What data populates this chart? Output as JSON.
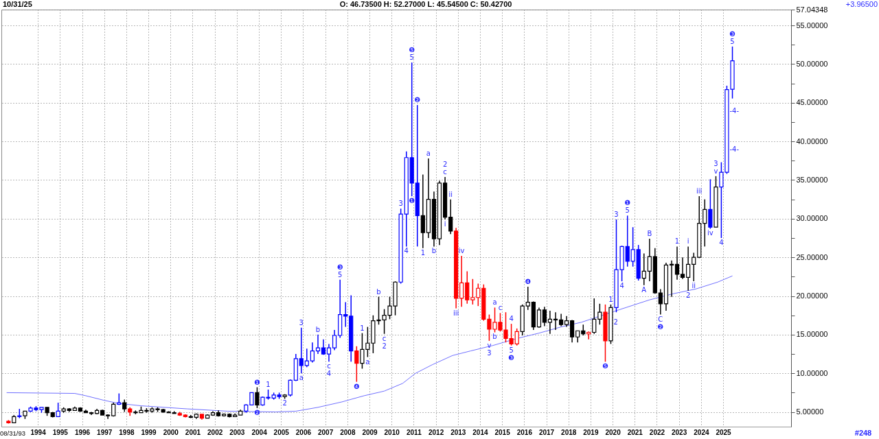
{
  "chart_data": {
    "type": "candlestick",
    "x": [
      "1993-01",
      "1993-04",
      "1993-07",
      "1993-10",
      "1994-01",
      "1994-04",
      "1994-07",
      "1994-10",
      "1995-01",
      "1995-04",
      "1995-07",
      "1995-10",
      "1996-01",
      "1996-04",
      "1996-07",
      "1996-10",
      "1997-01",
      "1997-04",
      "1997-07",
      "1997-10",
      "1998-01",
      "1998-04",
      "1998-07",
      "1998-10",
      "1999-01",
      "1999-04",
      "1999-07",
      "1999-10",
      "2000-01",
      "2000-04",
      "2000-07",
      "2000-10",
      "2001-01",
      "2001-04",
      "2001-07",
      "2001-10",
      "2002-01",
      "2002-04",
      "2002-07",
      "2002-10",
      "2003-01",
      "2003-04",
      "2003-07",
      "2003-10",
      "2004-01",
      "2004-04",
      "2004-07",
      "2004-10",
      "2005-01",
      "2005-04",
      "2005-07",
      "2005-10",
      "2006-01",
      "2006-04",
      "2006-07",
      "2006-10",
      "2007-01",
      "2007-04",
      "2007-07",
      "2007-10",
      "2008-01",
      "2008-04",
      "2008-07",
      "2008-10",
      "2009-01",
      "2009-04",
      "2009-07",
      "2009-10",
      "2010-01",
      "2010-04",
      "2010-07",
      "2010-10",
      "2011-01",
      "2011-04",
      "2011-07",
      "2011-10",
      "2012-01",
      "2012-04",
      "2012-07",
      "2012-10",
      "2013-01",
      "2013-04",
      "2013-07",
      "2013-10",
      "2014-01",
      "2014-04",
      "2014-07",
      "2014-10",
      "2015-01",
      "2015-04",
      "2015-07",
      "2015-10",
      "2016-01",
      "2016-04",
      "2016-07",
      "2016-10",
      "2017-01",
      "2017-04",
      "2017-07",
      "2017-10",
      "2018-01",
      "2018-04",
      "2018-07",
      "2018-10",
      "2019-01",
      "2019-04",
      "2019-07",
      "2019-10",
      "2020-01",
      "2020-04",
      "2020-07",
      "2020-10",
      "2021-01",
      "2021-04",
      "2021-07",
      "2021-10",
      "2022-01",
      "2022-04",
      "2022-07",
      "2022-10",
      "2023-01",
      "2023-04",
      "2023-07",
      "2023-10",
      "2024-01",
      "2024-04",
      "2024-07",
      "2024-10",
      "2025-01",
      "2025-04",
      "2025-07",
      "2025-10"
    ],
    "ohlc": [
      [
        3.8,
        3.95,
        3.5,
        3.6
      ],
      [
        3.6,
        4.6,
        3.6,
        4.4
      ],
      [
        4.4,
        5.4,
        4.2,
        4.5
      ],
      [
        4.5,
        5.1,
        4.1,
        5.1
      ],
      [
        5.1,
        5.7,
        5.0,
        5.5
      ],
      [
        5.5,
        5.75,
        5.1,
        5.3
      ],
      [
        5.3,
        5.6,
        4.9,
        5.6
      ],
      [
        5.6,
        5.6,
        4.5,
        4.9
      ],
      [
        4.9,
        5.0,
        4.3,
        4.4
      ],
      [
        4.4,
        6.2,
        4.4,
        5.1
      ],
      [
        5.1,
        5.6,
        4.9,
        5.4
      ],
      [
        5.4,
        5.5,
        5.0,
        5.2
      ],
      [
        5.2,
        5.7,
        5.2,
        5.5
      ],
      [
        5.5,
        5.6,
        5.0,
        5.1
      ],
      [
        5.1,
        5.3,
        4.9,
        4.9
      ],
      [
        4.9,
        5.0,
        4.6,
        4.8
      ],
      [
        4.8,
        5.4,
        4.7,
        5.2
      ],
      [
        5.2,
        5.3,
        4.6,
        4.6
      ],
      [
        4.6,
        4.7,
        4.1,
        4.5
      ],
      [
        4.5,
        6.2,
        4.4,
        6.0
      ],
      [
        6.0,
        7.4,
        5.9,
        6.2
      ],
      [
        6.2,
        6.6,
        5.0,
        5.4
      ],
      [
        5.4,
        5.6,
        4.5,
        5.0
      ],
      [
        5.0,
        5.2,
        4.7,
        4.9
      ],
      [
        4.9,
        5.7,
        4.9,
        5.2
      ],
      [
        5.2,
        5.5,
        4.9,
        5.1
      ],
      [
        5.1,
        5.6,
        4.9,
        5.4
      ],
      [
        5.4,
        5.6,
        5.0,
        5.3
      ],
      [
        5.3,
        5.4,
        4.9,
        5.0
      ],
      [
        5.0,
        5.1,
        4.9,
        4.9
      ],
      [
        4.9,
        5.1,
        4.8,
        4.8
      ],
      [
        4.8,
        5.0,
        4.5,
        4.6
      ],
      [
        4.6,
        4.7,
        4.3,
        4.4
      ],
      [
        4.4,
        4.6,
        4.2,
        4.3
      ],
      [
        4.3,
        4.8,
        4.1,
        4.7
      ],
      [
        4.7,
        4.7,
        4.0,
        4.2
      ],
      [
        4.2,
        4.7,
        4.2,
        4.6
      ],
      [
        4.6,
        5.1,
        4.5,
        4.9
      ],
      [
        4.9,
        5.2,
        4.4,
        4.5
      ],
      [
        4.5,
        4.8,
        4.4,
        4.7
      ],
      [
        4.7,
        4.8,
        4.3,
        4.4
      ],
      [
        4.4,
        4.8,
        4.4,
        4.6
      ],
      [
        4.6,
        5.3,
        4.6,
        5.1
      ],
      [
        5.1,
        6.0,
        4.9,
        5.9
      ],
      [
        5.9,
        7.5,
        5.9,
        7.5
      ],
      [
        7.5,
        8.2,
        5.5,
        5.9
      ],
      [
        5.9,
        7.0,
        5.8,
        6.9
      ],
      [
        6.9,
        7.9,
        6.6,
        6.8
      ],
      [
        6.8,
        7.5,
        6.6,
        7.2
      ],
      [
        7.2,
        7.5,
        6.7,
        7.0
      ],
      [
        7.0,
        7.3,
        6.7,
        7.2
      ],
      [
        7.2,
        9.2,
        7.0,
        9.1
      ],
      [
        9.1,
        12.5,
        9.0,
        11.9
      ],
      [
        11.9,
        15.9,
        10.0,
        11.0
      ],
      [
        11.0,
        13.2,
        10.8,
        11.6
      ],
      [
        11.6,
        14.0,
        11.4,
        12.9
      ],
      [
        12.9,
        15.0,
        12.5,
        13.3
      ],
      [
        13.3,
        14.4,
        12.4,
        12.5
      ],
      [
        12.5,
        13.8,
        11.5,
        13.3
      ],
      [
        13.3,
        15.6,
        13.0,
        14.9
      ],
      [
        14.9,
        22.1,
        14.6,
        17.6
      ],
      [
        17.6,
        19.2,
        16.0,
        17.4
      ],
      [
        17.4,
        20.1,
        11.5,
        12.9
      ],
      [
        12.9,
        13.5,
        8.9,
        11.3
      ],
      [
        11.3,
        15.2,
        10.6,
        13.1
      ],
      [
        13.1,
        16.0,
        12.1,
        13.9
      ],
      [
        13.9,
        17.5,
        12.6,
        16.8
      ],
      [
        16.8,
        19.9,
        16.3,
        16.9
      ],
      [
        16.9,
        18.3,
        15.1,
        17.5
      ],
      [
        17.5,
        19.9,
        17.0,
        18.7
      ],
      [
        18.7,
        21.9,
        17.5,
        21.8
      ],
      [
        21.8,
        31.3,
        21.6,
        30.6
      ],
      [
        30.6,
        38.7,
        26.4,
        37.9
      ],
      [
        37.9,
        50.2,
        32.9,
        34.6
      ],
      [
        34.6,
        44.7,
        26.4,
        30.4
      ],
      [
        30.4,
        35.7,
        26.2,
        28.2
      ],
      [
        28.2,
        37.8,
        27.5,
        32.5
      ],
      [
        32.5,
        33.5,
        26.4,
        27.4
      ],
      [
        27.4,
        34.9,
        26.6,
        34.6
      ],
      [
        34.6,
        35.4,
        29.9,
        30.2
      ],
      [
        30.2,
        32.5,
        28.0,
        28.4
      ],
      [
        28.4,
        28.8,
        18.4,
        19.7
      ],
      [
        19.7,
        25.2,
        18.6,
        21.7
      ],
      [
        21.7,
        23.2,
        19.0,
        19.5
      ],
      [
        19.5,
        22.2,
        18.9,
        19.8
      ],
      [
        19.8,
        21.6,
        18.7,
        21.0
      ],
      [
        21.0,
        21.5,
        16.8,
        17.0
      ],
      [
        17.0,
        17.6,
        14.2,
        15.7
      ],
      [
        15.7,
        18.5,
        15.3,
        16.6
      ],
      [
        16.6,
        17.8,
        15.4,
        15.6
      ],
      [
        15.6,
        17.9,
        14.0,
        14.5
      ],
      [
        14.5,
        16.4,
        13.6,
        13.8
      ],
      [
        13.8,
        15.8,
        13.6,
        15.4
      ],
      [
        15.4,
        18.9,
        14.9,
        18.7
      ],
      [
        18.7,
        21.2,
        18.2,
        19.2
      ],
      [
        19.2,
        19.3,
        15.6,
        16.0
      ],
      [
        16.0,
        18.5,
        15.9,
        18.2
      ],
      [
        18.2,
        18.6,
        16.1,
        16.6
      ],
      [
        16.6,
        18.1,
        15.1,
        17.0
      ],
      [
        17.0,
        17.9,
        15.6,
        16.9
      ],
      [
        16.9,
        17.7,
        16.1,
        16.3
      ],
      [
        16.3,
        17.4,
        16.0,
        16.8
      ],
      [
        16.8,
        16.9,
        14.0,
        14.7
      ],
      [
        14.7,
        15.5,
        14.0,
        15.5
      ],
      [
        15.5,
        16.3,
        14.9,
        15.1
      ],
      [
        15.1,
        15.4,
        14.4,
        15.3
      ],
      [
        15.3,
        19.7,
        15.1,
        17.0
      ],
      [
        17.0,
        19.0,
        16.3,
        17.9
      ],
      [
        17.9,
        18.9,
        11.5,
        14.2
      ],
      [
        14.2,
        18.9,
        13.8,
        18.5
      ],
      [
        18.5,
        29.9,
        17.9,
        23.4
      ],
      [
        23.4,
        26.5,
        21.9,
        26.4
      ],
      [
        26.4,
        30.4,
        23.8,
        24.5
      ],
      [
        24.5,
        28.9,
        23.8,
        26.0
      ],
      [
        26.0,
        26.6,
        22.0,
        22.3
      ],
      [
        22.3,
        25.5,
        21.4,
        23.2
      ],
      [
        23.2,
        27.4,
        21.9,
        25.1
      ],
      [
        25.1,
        26.2,
        20.3,
        20.4
      ],
      [
        20.4,
        20.9,
        17.6,
        19.0
      ],
      [
        19.0,
        24.3,
        18.1,
        24.0
      ],
      [
        24.0,
        24.6,
        19.9,
        24.1
      ],
      [
        24.1,
        26.4,
        22.1,
        22.8
      ],
      [
        22.8,
        25.0,
        22.2,
        22.4
      ],
      [
        22.4,
        26.4,
        20.7,
        24.1
      ],
      [
        24.1,
        25.6,
        21.9,
        25.0
      ],
      [
        25.0,
        32.9,
        24.9,
        29.4
      ],
      [
        29.4,
        32.5,
        26.4,
        31.2
      ],
      [
        31.2,
        35.1,
        28.7,
        28.9
      ],
      [
        28.9,
        35.5,
        28.9,
        34.1
      ],
      [
        34.1,
        37.3,
        27.5,
        36.0
      ],
      [
        36.0,
        47.2,
        35.8,
        46.7
      ],
      [
        46.735,
        52.27,
        45.545,
        50.427
      ]
    ],
    "colors": [
      "#ff0000",
      "#000000",
      "#0000ff",
      "#000000",
      "#0000ff",
      "#0000ff",
      "#0000ff",
      "#000000",
      "#000000",
      "#0000ff",
      "#000000",
      "#000000",
      "#000000",
      "#000000",
      "#000000",
      "#000000",
      "#000000",
      "#000000",
      "#000000",
      "#000000",
      "#0000ff",
      "#000000",
      "#ff0000",
      "#000000",
      "#000000",
      "#000000",
      "#000000",
      "#000000",
      "#000000",
      "#000000",
      "#000000",
      "#ff0000",
      "#ff0000",
      "#000000",
      "#000000",
      "#ff0000",
      "#000000",
      "#000000",
      "#000000",
      "#000000",
      "#000000",
      "#000000",
      "#000000",
      "#0000ff",
      "#0000ff",
      "#000000",
      "#0000ff",
      "#0000ff",
      "#0000ff",
      "#0000ff",
      "#000000",
      "#0000ff",
      "#0000ff",
      "#0000ff",
      "#0000ff",
      "#0000ff",
      "#0000ff",
      "#0000ff",
      "#0000ff",
      "#0000ff",
      "#0000ff",
      "#0000ff",
      "#0000ff",
      "#ff0000",
      "#000000",
      "#000000",
      "#000000",
      "#000000",
      "#000000",
      "#000000",
      "#000000",
      "#0000ff",
      "#0000ff",
      "#0000ff",
      "#0000ff",
      "#000000",
      "#000000",
      "#000000",
      "#000000",
      "#000000",
      "#000000",
      "#ff0000",
      "#ff0000",
      "#ff0000",
      "#ff0000",
      "#ff0000",
      "#ff0000",
      "#ff0000",
      "#ff0000",
      "#ff0000",
      "#ff0000",
      "#ff0000",
      "#ff0000",
      "#000000",
      "#000000",
      "#000000",
      "#000000",
      "#000000",
      "#000000",
      "#000000",
      "#000000",
      "#000000",
      "#000000",
      "#000000",
      "#000000",
      "#ff0000",
      "#000000",
      "#000000",
      "#ff0000",
      "#000000",
      "#0000ff",
      "#0000ff",
      "#0000ff",
      "#0000ff",
      "#0000ff",
      "#000000",
      "#000000",
      "#000000",
      "#000000",
      "#000000",
      "#000000",
      "#000000",
      "#000000",
      "#000000",
      "#000000",
      "#000000",
      "#000000",
      "#0000ff",
      "#000000",
      "#0000ff",
      "#0000ff",
      "#0000ff"
    ],
    "series": [
      {
        "type": "line",
        "color": "#7070ff",
        "x": [
          "1992-12",
          "1996-01",
          "1996-07",
          "1997-05",
          "1998-01",
          "1999-01",
          "2001-02",
          "2002-12",
          "2005-02",
          "2006-01",
          "2007-01",
          "2008-02",
          "2009-02",
          "2010-01",
          "2010-11",
          "2011-06",
          "2012-03",
          "2013-02",
          "2013-12",
          "2014-12",
          "2016-01",
          "2017-01",
          "2018-01",
          "2018-12",
          "2020-07",
          "2022-01",
          "2023-02",
          "2024-02",
          "2025-02",
          "2025-10"
        ],
        "values": [
          7.5,
          7.4,
          7.1,
          6.5,
          6.1,
          5.8,
          5.4,
          5.1,
          5.0,
          5.1,
          5.6,
          6.3,
          7.1,
          7.7,
          8.7,
          10.0,
          11.1,
          12.3,
          12.9,
          13.6,
          14.5,
          15.2,
          16.0,
          16.6,
          18.1,
          19.5,
          20.3,
          20.9,
          21.8,
          22.6
        ]
      }
    ],
    "xlim": [
      "1992-11",
      "2028-04"
    ],
    "xticks": [
      {
        "value": "1994-05",
        "label": "1994"
      },
      {
        "value": "1995-05",
        "label": "1995"
      },
      {
        "value": "1996-05",
        "label": "1996"
      },
      {
        "value": "1997-05",
        "label": "1997"
      },
      {
        "value": "1998-05",
        "label": "1998"
      },
      {
        "value": "1999-05",
        "label": "1999"
      },
      {
        "value": "2000-05",
        "label": "2000"
      },
      {
        "value": "2001-05",
        "label": "2001"
      },
      {
        "value": "2002-05",
        "label": "2002"
      },
      {
        "value": "2003-05",
        "label": "2003"
      },
      {
        "value": "2004-05",
        "label": "2004"
      },
      {
        "value": "2005-05",
        "label": "2005"
      },
      {
        "value": "2006-05",
        "label": "2006"
      },
      {
        "value": "2007-05",
        "label": "2007"
      },
      {
        "value": "2008-05",
        "label": "2008"
      },
      {
        "value": "2009-05",
        "label": "2009"
      },
      {
        "value": "2010-05",
        "label": "2010"
      },
      {
        "value": "2011-05",
        "label": "2011"
      },
      {
        "value": "2012-05",
        "label": "2012"
      },
      {
        "value": "2013-05",
        "label": "2013"
      },
      {
        "value": "2014-05",
        "label": "2014"
      },
      {
        "value": "2015-05",
        "label": "2015"
      },
      {
        "value": "2016-05",
        "label": "2016"
      },
      {
        "value": "2017-05",
        "label": "2017"
      },
      {
        "value": "2018-05",
        "label": "2018"
      },
      {
        "value": "2019-05",
        "label": "2019"
      },
      {
        "value": "2020-05",
        "label": "2020"
      },
      {
        "value": "2021-05",
        "label": "2021"
      },
      {
        "value": "2022-05",
        "label": "2022"
      },
      {
        "value": "2023-05",
        "label": "2023"
      },
      {
        "value": "2024-05",
        "label": "2024"
      },
      {
        "value": "2025-05",
        "label": "2025"
      }
    ],
    "ylim": [
      3.1,
      57.04348
    ],
    "yticks": [
      {
        "value": 5,
        "label": "5.00000"
      },
      {
        "value": 7.5,
        "label": null
      },
      {
        "value": 10,
        "label": "10.00000"
      },
      {
        "value": 12.5,
        "label": null
      },
      {
        "value": 15,
        "label": "15.00000"
      },
      {
        "value": 17.5,
        "label": null
      },
      {
        "value": 20,
        "label": "20.00000"
      },
      {
        "value": 22.5,
        "label": null
      },
      {
        "value": 25,
        "label": "25.00000"
      },
      {
        "value": 27.5,
        "label": null
      },
      {
        "value": 30,
        "label": "30.00000"
      },
      {
        "value": 32.5,
        "label": null
      },
      {
        "value": 35,
        "label": "35.00000"
      },
      {
        "value": 37.5,
        "label": null
      },
      {
        "value": 40,
        "label": "40.00000"
      },
      {
        "value": 42.5,
        "label": null
      },
      {
        "value": 45,
        "label": "45.00000"
      },
      {
        "value": 47.5,
        "label": null
      },
      {
        "value": 50,
        "label": "50.00000"
      },
      {
        "value": 52.5,
        "label": null
      },
      {
        "value": 55,
        "label": "55.00000"
      },
      {
        "value": 57.04348,
        "label": "57.04348"
      }
    ],
    "grid": true,
    "annotations": [
      "10/31/25",
      "O: 46.73500   H: 52.27000   L: 45.54500   C: 50.42700",
      "+3.96500",
      "08/31/93",
      "#248",
      {
        "text": "❶",
        "x": "2004-04",
        "y": 8.2
      },
      {
        "text": "❷",
        "x": "2004-04",
        "y": 5.5
      },
      {
        "text": "1",
        "x": "2004-10",
        "y": 7.9
      },
      {
        "text": "2",
        "x": "2005-07",
        "y": 6.7
      },
      {
        "text": "3",
        "x": "2006-04",
        "y": 15.9
      },
      {
        "text": "a",
        "x": "2006-04",
        "y": 10.0
      },
      {
        "text": "b",
        "x": "2007-01",
        "y": 15.0
      },
      {
        "text": "c",
        "x": "2007-07",
        "y": 11.5
      },
      {
        "text": "4",
        "x": "2007-07",
        "y": 11.5
      },
      {
        "text": "5",
        "x": "2008-01",
        "y": 22.1
      },
      {
        "text": "❸",
        "x": "2008-01",
        "y": 22.1
      },
      {
        "text": "❹",
        "x": "2008-10",
        "y": 8.9
      },
      {
        "text": "1",
        "x": "2009-01",
        "y": 15.2
      },
      {
        "text": "a",
        "x": "2009-04",
        "y": 12.1
      },
      {
        "text": "b",
        "x": "2009-10",
        "y": 19.9
      },
      {
        "text": "c",
        "x": "2010-01",
        "y": 15.1
      },
      {
        "text": "2",
        "x": "2010-01",
        "y": 15.1
      },
      {
        "text": "3",
        "x": "2010-10",
        "y": 31.3
      },
      {
        "text": "4",
        "x": "2011-01",
        "y": 26.4
      },
      {
        "text": "5",
        "x": "2011-04",
        "y": 50.2
      },
      {
        "text": "❺",
        "x": "2011-04",
        "y": 50.2
      },
      {
        "text": "❶",
        "x": "2011-04",
        "y": 32.9
      },
      {
        "text": "❷",
        "x": "2011-07",
        "y": 44.7
      },
      {
        "text": "1",
        "x": "2011-10",
        "y": 26.2
      },
      {
        "text": "a",
        "x": "2012-01",
        "y": 37.8
      },
      {
        "text": "b",
        "x": "2012-04",
        "y": 26.4
      },
      {
        "text": "c",
        "x": "2012-10",
        "y": 35.4
      },
      {
        "text": "2",
        "x": "2012-10",
        "y": 35.4
      },
      {
        "text": "i",
        "x": "2012-10",
        "y": 29.9
      },
      {
        "text": "ii",
        "x": "2013-01",
        "y": 32.5
      },
      {
        "text": "iii",
        "x": "2013-04",
        "y": 18.4
      },
      {
        "text": "iv",
        "x": "2013-07",
        "y": 25.2
      },
      {
        "text": "v",
        "x": "2014-10",
        "y": 14.2
      },
      {
        "text": "3",
        "x": "2014-10",
        "y": 14.2
      },
      {
        "text": "a",
        "x": "2015-01",
        "y": 18.5
      },
      {
        "text": "b",
        "x": "2015-01",
        "y": 15.3
      },
      {
        "text": "c",
        "x": "2015-04",
        "y": 17.8
      },
      {
        "text": "4",
        "x": "2015-10",
        "y": 16.4
      },
      {
        "text": "5",
        "x": "2015-10",
        "y": 13.6
      },
      {
        "text": "❸",
        "x": "2015-10",
        "y": 13.6
      },
      {
        "text": "❹",
        "x": "2016-07",
        "y": 21.2
      },
      {
        "text": "❺",
        "x": "2020-01",
        "y": 11.5
      },
      {
        "text": "1",
        "x": "2020-04",
        "y": 18.9
      },
      {
        "text": "2",
        "x": "2020-04",
        "y": 16.6
      },
      {
        "text": "3",
        "x": "2020-07",
        "y": 29.9
      },
      {
        "text": "4",
        "x": "2020-10",
        "y": 21.9
      },
      {
        "text": "5",
        "x": "2021-01",
        "y": 30.4
      },
      {
        "text": "❶",
        "x": "2021-01",
        "y": 30.4
      },
      {
        "text": "A",
        "x": "2021-10",
        "y": 21.4
      },
      {
        "text": "B",
        "x": "2022-01",
        "y": 27.4
      },
      {
        "text": "C",
        "x": "2022-07",
        "y": 17.6
      },
      {
        "text": "❷",
        "x": "2022-07",
        "y": 17.6
      },
      {
        "text": "1",
        "x": "2023-04",
        "y": 26.4
      },
      {
        "text": "2",
        "x": "2023-10",
        "y": 20.7
      },
      {
        "text": "i",
        "x": "2023-10",
        "y": 26.4
      },
      {
        "text": "ii",
        "x": "2024-01",
        "y": 21.9
      },
      {
        "text": "iii",
        "x": "2024-04",
        "y": 32.9
      },
      {
        "text": "iv",
        "x": "2024-10",
        "y": 28.7
      },
      {
        "text": "v",
        "x": "2025-01",
        "y": 35.5
      },
      {
        "text": "3",
        "x": "2025-01",
        "y": 35.5
      },
      {
        "text": "4",
        "x": "2025-04",
        "y": 27.5
      },
      {
        "text": "-4-",
        "x": "2025-07",
        "y": 43.9
      },
      {
        "text": "-4-",
        "x": "2025-07",
        "y": 38.9
      },
      {
        "text": "5",
        "x": "2025-10",
        "y": 52.27
      },
      {
        "text": "❸",
        "x": "2025-10",
        "y": 52.27
      }
    ]
  }
}
